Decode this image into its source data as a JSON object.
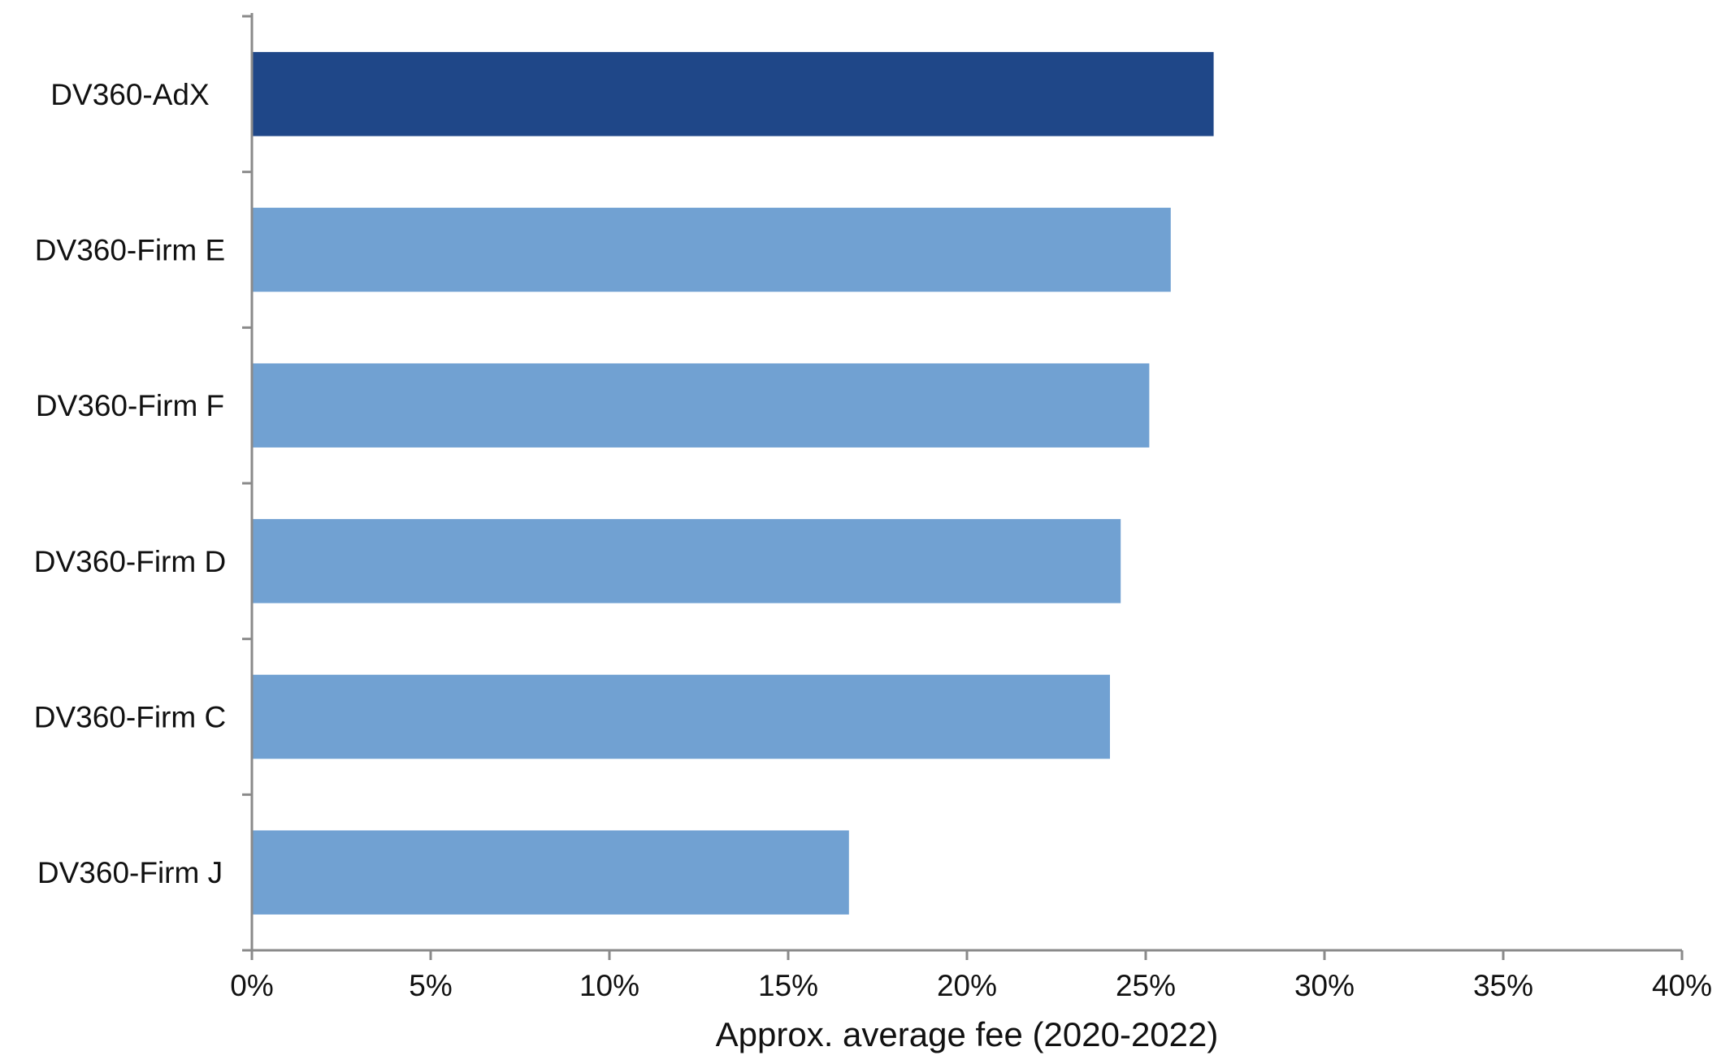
{
  "chart_data": {
    "type": "bar",
    "orientation": "horizontal",
    "title": "",
    "xlabel": "Approx. average fee (2020-2022)",
    "ylabel": "",
    "xlim": [
      0,
      40
    ],
    "x_ticks": [
      "0%",
      "5%",
      "10%",
      "15%",
      "20%",
      "25%",
      "30%",
      "35%",
      "40%"
    ],
    "tick_values": [
      0,
      5,
      10,
      15,
      20,
      25,
      30,
      35,
      40
    ],
    "unit": "%",
    "grid": false,
    "legend": "none",
    "categories": [
      "DV360-AdX",
      "DV360-Firm E",
      "DV360-Firm F",
      "DV360-Firm D",
      "DV360-Firm C",
      "DV360-Firm J"
    ],
    "values": [
      26.9,
      25.7,
      25.1,
      24.3,
      24.0,
      16.7
    ],
    "colors": [
      "#1f4788",
      "#71a1d2",
      "#71a1d2",
      "#71a1d2",
      "#71a1d2",
      "#71a1d2"
    ]
  }
}
